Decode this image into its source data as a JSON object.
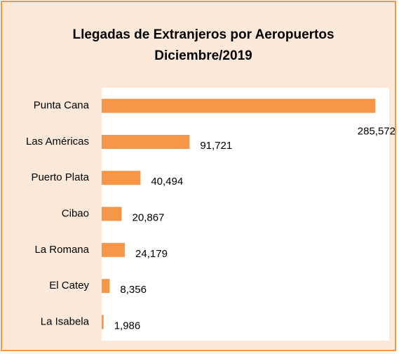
{
  "chart_data": {
    "type": "bar",
    "orientation": "horizontal",
    "title": "Llegadas de Extranjeros por Aeropuertos",
    "subtitle": "Diciembre/2019",
    "categories": [
      "Punta Cana",
      "Las Américas",
      "Puerto Plata",
      "Cibao",
      "La Romana",
      "El Catey",
      "La Isabela"
    ],
    "values": [
      285572,
      91721,
      40494,
      20867,
      24179,
      8356,
      1986
    ],
    "value_labels": [
      "285,572",
      "91,721",
      "40,494",
      "20,867",
      "24,179",
      "8,356",
      "1,986"
    ],
    "color": "#f79646",
    "xlim": [
      0,
      300000
    ]
  }
}
